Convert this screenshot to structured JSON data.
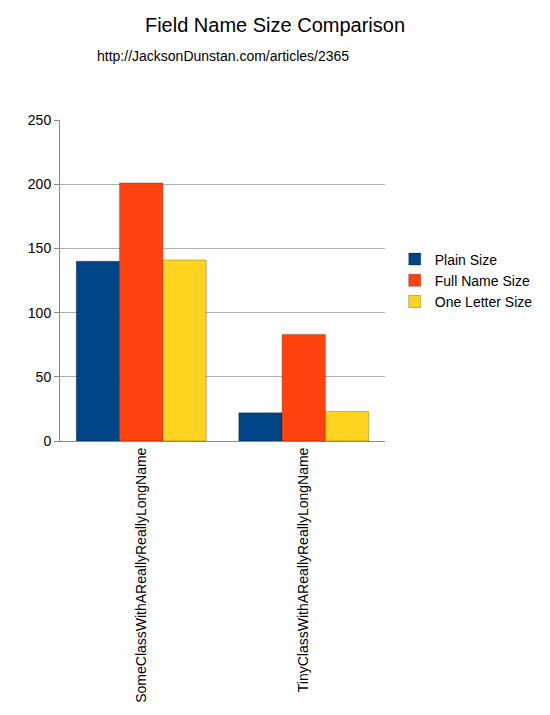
{
  "chart_data": {
    "type": "bar",
    "title": "Field Name Size Comparison",
    "subtitle": "http://JacksonDunstan.com/articles/2365",
    "categories": [
      "SomeClassWithAReallyReallyLongName",
      "TinyClassWithAReallyReallyLongName"
    ],
    "series": [
      {
        "name": "Plain Size",
        "color": "#004586",
        "values": [
          140,
          22
        ]
      },
      {
        "name": "Full Name Size",
        "color": "#ff420e",
        "values": [
          201,
          83
        ]
      },
      {
        "name": "One Letter Size",
        "color": "#ffd320",
        "values": [
          141,
          23
        ]
      }
    ],
    "ylim": [
      0,
      250
    ],
    "yticks": [
      0,
      50,
      100,
      150,
      200,
      250
    ],
    "grid": true,
    "legend": "right"
  }
}
